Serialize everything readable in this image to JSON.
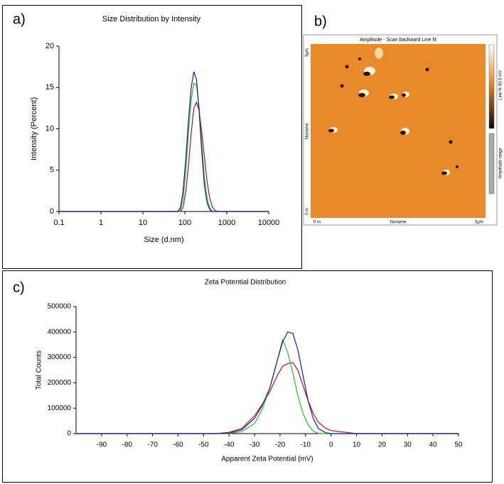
{
  "chart_data": [
    {
      "type": "line",
      "label": "a)",
      "title": "Size Distribution by Intensity",
      "xlabel": "Size (d.nm)",
      "ylabel": "Intensity (Percent)",
      "xscale": "log",
      "xlim": [
        0.1,
        10000
      ],
      "xticks": [
        0.1,
        1,
        10,
        100,
        1000,
        10000
      ],
      "ylim": [
        0,
        20
      ],
      "yticks": [
        0,
        5,
        10,
        15,
        20
      ],
      "x": [
        0.1,
        0.3,
        1,
        3,
        10,
        30,
        50,
        68,
        79,
        91,
        106,
        122,
        142,
        164,
        190,
        220,
        255,
        295,
        342,
        396,
        459,
        531,
        615,
        712,
        825,
        2000,
        5000,
        10000
      ],
      "series": [
        {
          "color": "#1a1aa0",
          "values": [
            0,
            0,
            0,
            0,
            0,
            0,
            0,
            0,
            0.5,
            2.5,
            6.5,
            11,
            15,
            16.9,
            16,
            12,
            7,
            3,
            1,
            0.2,
            0,
            0,
            0,
            0,
            0,
            0,
            0,
            0
          ]
        },
        {
          "color": "#22c022",
          "values": [
            0,
            0,
            0,
            0,
            0,
            0,
            0,
            0,
            0.2,
            1.5,
            5,
            9.5,
            13.5,
            15.5,
            15.3,
            12.5,
            8,
            4,
            1.5,
            0.4,
            0,
            0,
            0,
            0,
            0,
            0,
            0,
            0
          ]
        },
        {
          "color": "#b01030",
          "values": [
            0,
            0,
            0,
            0,
            0,
            0,
            0,
            0,
            0,
            0.5,
            2.5,
            5.5,
            9.5,
            12.5,
            13.2,
            12.2,
            9.5,
            6.5,
            3.5,
            1.5,
            0.5,
            0.1,
            0,
            0,
            0,
            0,
            0,
            0
          ]
        }
      ]
    },
    {
      "type": "line",
      "label": "c)",
      "title": "Zeta Potential Distribution",
      "xlabel": "Apparent Zeta Potential (mV)",
      "ylabel": "Total Counts",
      "xlim": [
        -100,
        50
      ],
      "xticks": [
        -90,
        -80,
        -70,
        -60,
        -50,
        -40,
        -30,
        -20,
        -10,
        0,
        10,
        20,
        30,
        40,
        50
      ],
      "ylim": [
        0,
        500000
      ],
      "yticks": [
        0,
        100000,
        200000,
        300000,
        400000,
        500000
      ],
      "x": [
        -100,
        -90,
        -80,
        -70,
        -60,
        -50,
        -45,
        -40,
        -35,
        -30,
        -27,
        -24,
        -21,
        -19,
        -17,
        -15,
        -13,
        -11,
        -9,
        -7,
        -5,
        -2,
        0,
        3,
        6,
        10,
        20,
        30,
        40,
        50
      ],
      "series": [
        {
          "color": "#1a1aa0",
          "values": [
            0,
            0,
            0,
            0,
            0,
            0,
            0,
            2000,
            15000,
            60000,
            110000,
            180000,
            290000,
            360000,
            400000,
            395000,
            330000,
            230000,
            130000,
            60000,
            20000,
            3000,
            0,
            0,
            0,
            0,
            0,
            0,
            0,
            0
          ]
        },
        {
          "color": "#22c022",
          "values": [
            0,
            0,
            0,
            0,
            0,
            0,
            0,
            0,
            8000,
            40000,
            95000,
            180000,
            290000,
            370000,
            320000,
            240000,
            150000,
            80000,
            35000,
            10000,
            1000,
            0,
            0,
            0,
            0,
            0,
            0,
            0,
            0,
            0
          ]
        },
        {
          "color": "#b01030",
          "values": [
            0,
            0,
            0,
            0,
            0,
            0,
            0,
            5000,
            20000,
            70000,
            115000,
            165000,
            230000,
            265000,
            275000,
            280000,
            250000,
            190000,
            130000,
            80000,
            45000,
            20000,
            12000,
            8000,
            5000,
            0,
            0,
            0,
            0,
            0
          ]
        }
      ]
    }
  ],
  "image_b": {
    "label": "b)",
    "title": "Amplitude - Scan backward   Line fit",
    "y_top": "5µm",
    "y_bottom": "0 m",
    "y_name": "Noname",
    "x_left": "0 m",
    "x_name": "Noname",
    "x_right": "5µm",
    "colorbar_top": "Line fit 49.5 mV",
    "colorbar_bottom": "Amplitude range"
  }
}
